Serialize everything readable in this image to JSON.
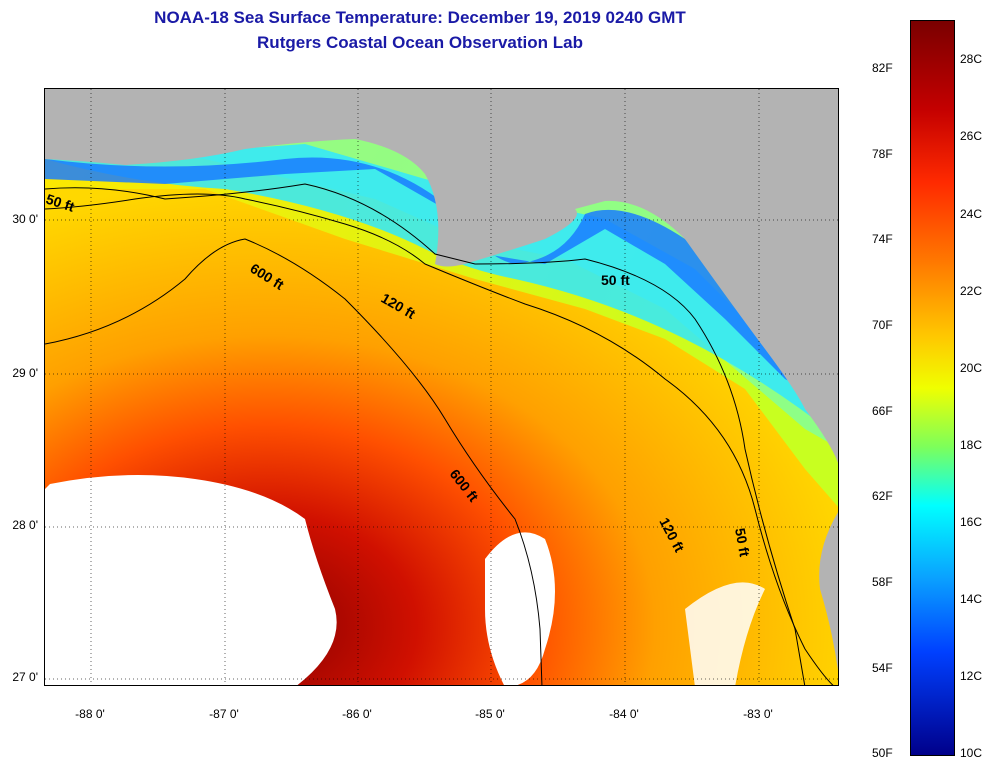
{
  "title": {
    "line1": "NOAA-18 Sea Surface Temperature:  December 19, 2019 0240 GMT",
    "line2": "Rutgers Coastal Ocean Observation Lab"
  },
  "map": {
    "lat_labels": [
      "30 0'",
      "29 0'",
      "28 0'",
      "27 0'"
    ],
    "lon_labels": [
      "-88 0'",
      "-87 0'",
      "-86 0'",
      "-85 0'",
      "-84 0'",
      "-83 0'"
    ],
    "contour_labels": {
      "c50a": "50 ft",
      "c50b": "50 ft",
      "c50c": "50 ft",
      "c120a": "120 ft",
      "c120b": "120 ft",
      "c600a": "600 ft",
      "c600b": "600 ft"
    },
    "land_color": "#b3b3b3",
    "cloud_color": "#ffffff"
  },
  "colorbar": {
    "f_labels": [
      "82F",
      "78F",
      "74F",
      "70F",
      "66F",
      "62F",
      "58F",
      "54F",
      "50F"
    ],
    "c_labels": [
      "28C",
      "26C",
      "24C",
      "22C",
      "20C",
      "18C",
      "16C",
      "14C",
      "12C",
      "10C"
    ],
    "min_c": 10,
    "max_c": 29
  }
}
